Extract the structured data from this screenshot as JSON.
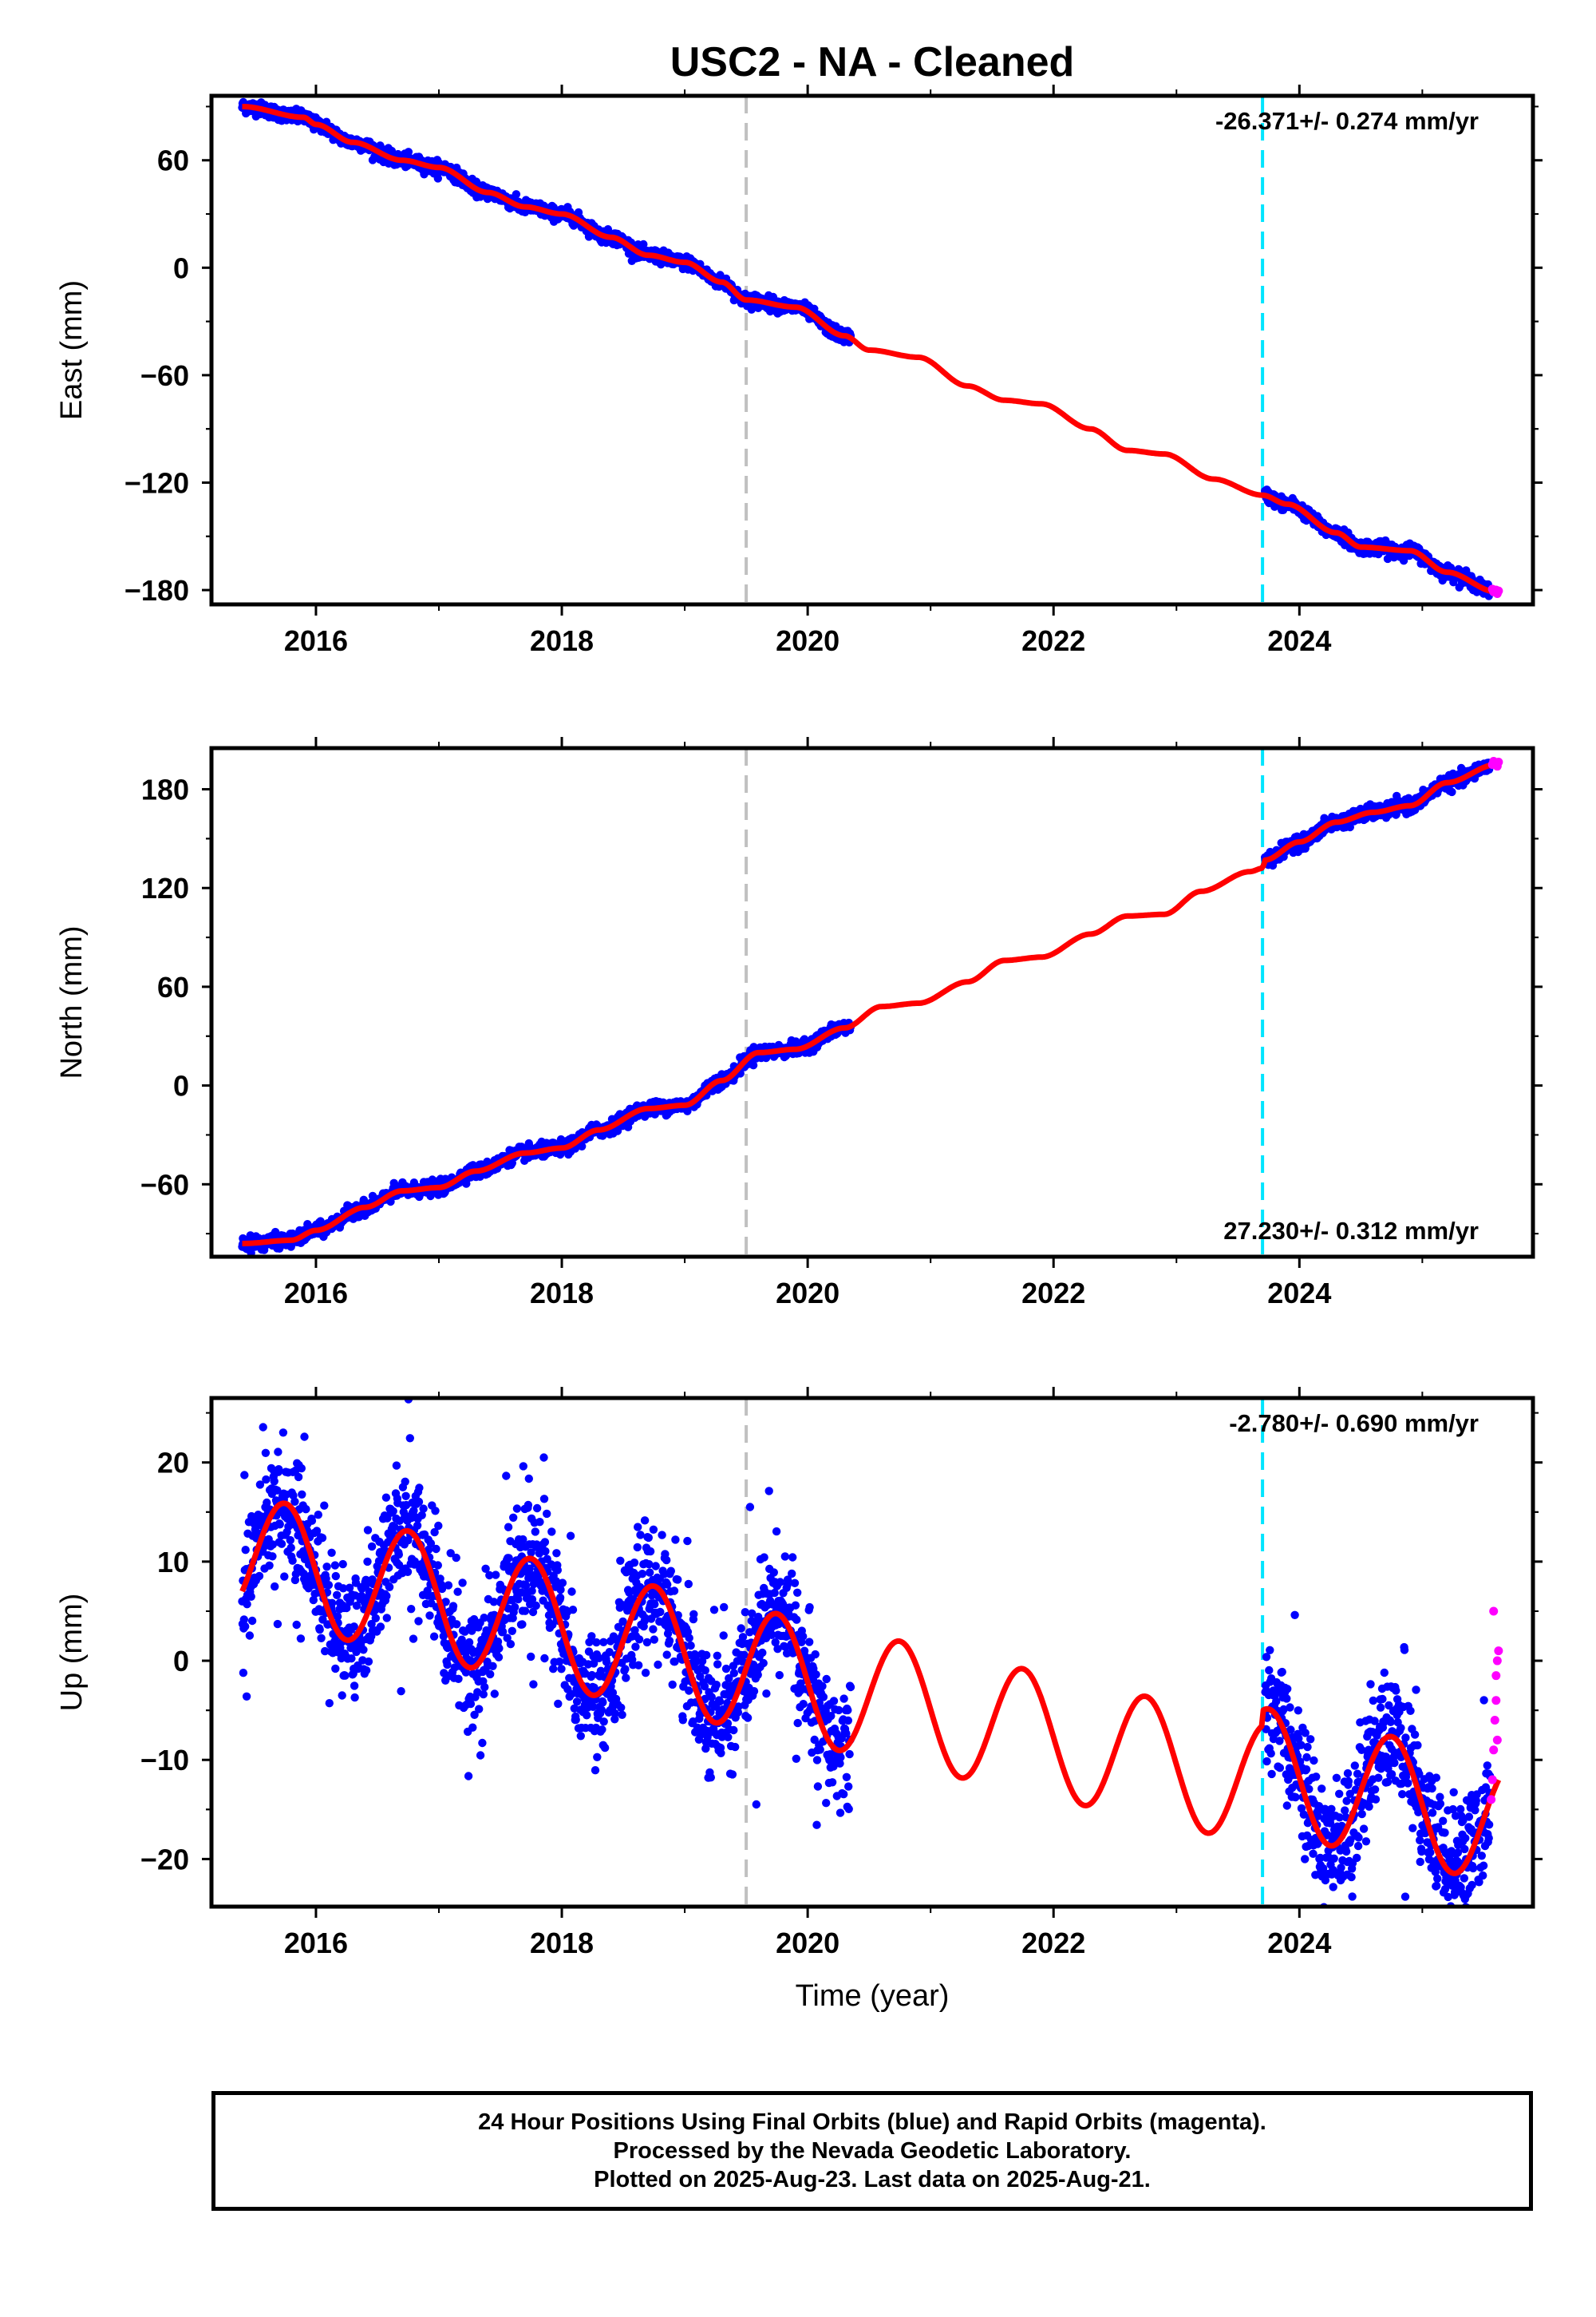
{
  "title": "USC2  - NA - Cleaned",
  "xlabel": "Time (year)",
  "colors": {
    "final": "#0000ff",
    "rapid": "#ff00ff",
    "model": "#ff0000",
    "event_gray": "#c0c0c0",
    "event_cyan": "#00e5ff"
  },
  "footer": {
    "line1": "24 Hour Positions Using Final Orbits (blue) and Rapid Orbits (magenta).",
    "line2": "Processed by the Nevada Geodetic Laboratory.",
    "line3": "Plotted on 2025-Aug-23. Last data on 2025-Aug-21."
  },
  "chart_data": [
    {
      "type": "scatter",
      "id": "east",
      "ylabel": "East (mm)",
      "rate_label": "-26.371+/- 0.274 mm/yr",
      "rate_position": "top-right",
      "xlim": [
        2015.15,
        2025.9
      ],
      "ylim": [
        -188,
        96
      ],
      "xticks": [
        2016,
        2018,
        2020,
        2022,
        2024
      ],
      "yticks": [
        -180,
        -120,
        -60,
        0,
        60
      ],
      "grid": false,
      "event_lines": [
        {
          "x": 2019.5,
          "color": "gray",
          "style": "dashed"
        },
        {
          "x": 2023.7,
          "color": "cyan",
          "style": "dashed"
        }
      ],
      "model_curve": [
        [
          2015.4,
          90
        ],
        [
          2015.9,
          84
        ],
        [
          2016.0,
          80
        ],
        [
          2016.3,
          70
        ],
        [
          2016.7,
          60
        ],
        [
          2017.0,
          56
        ],
        [
          2017.4,
          42
        ],
        [
          2017.7,
          34
        ],
        [
          2018.0,
          30
        ],
        [
          2018.4,
          17
        ],
        [
          2018.7,
          7
        ],
        [
          2019.0,
          3
        ],
        [
          2019.3,
          -8
        ],
        [
          2019.5,
          -18
        ],
        [
          2019.9,
          -22
        ],
        [
          2020.3,
          -38
        ],
        [
          2020.5,
          -46
        ],
        [
          2020.9,
          -50
        ],
        [
          2021.3,
          -66
        ],
        [
          2021.6,
          -74
        ],
        [
          2021.9,
          -76
        ],
        [
          2022.3,
          -90
        ],
        [
          2022.6,
          -102
        ],
        [
          2022.9,
          -104
        ],
        [
          2023.3,
          -118
        ],
        [
          2023.7,
          -127
        ],
        [
          2023.9,
          -132
        ],
        [
          2024.3,
          -148
        ],
        [
          2024.5,
          -156
        ],
        [
          2024.9,
          -158
        ],
        [
          2025.2,
          -170
        ],
        [
          2025.6,
          -181
        ]
      ],
      "final_segments": [
        {
          "start": 2015.4,
          "end": 2020.35
        },
        {
          "start": 2023.72,
          "end": 2025.55
        }
      ],
      "scatter_sd": 1.8,
      "rapid_points": [
        [
          2025.57,
          -179.5
        ],
        [
          2025.58,
          -181
        ],
        [
          2025.6,
          -180
        ],
        [
          2025.61,
          -182
        ],
        [
          2025.62,
          -180.5
        ]
      ]
    },
    {
      "type": "scatter",
      "id": "north",
      "ylabel": "North (mm)",
      "rate_label": "27.230+/- 0.312 mm/yr",
      "rate_position": "bottom-right",
      "xlim": [
        2015.15,
        2025.9
      ],
      "ylim": [
        -104,
        205
      ],
      "xticks": [
        2016,
        2018,
        2020,
        2022,
        2024
      ],
      "yticks": [
        -60,
        0,
        60,
        120,
        180
      ],
      "grid": false,
      "event_lines": [
        {
          "x": 2019.5,
          "color": "gray",
          "style": "dashed"
        },
        {
          "x": 2023.7,
          "color": "cyan",
          "style": "dashed"
        }
      ],
      "model_curve": [
        [
          2015.4,
          -96
        ],
        [
          2015.8,
          -94
        ],
        [
          2016.0,
          -88
        ],
        [
          2016.4,
          -74
        ],
        [
          2016.7,
          -64
        ],
        [
          2017.0,
          -62
        ],
        [
          2017.3,
          -52
        ],
        [
          2017.7,
          -41
        ],
        [
          2018.0,
          -38
        ],
        [
          2018.3,
          -27
        ],
        [
          2018.7,
          -14
        ],
        [
          2019.0,
          -12
        ],
        [
          2019.3,
          3
        ],
        [
          2019.6,
          20
        ],
        [
          2019.9,
          22
        ],
        [
          2020.3,
          35
        ],
        [
          2020.6,
          48
        ],
        [
          2020.9,
          50
        ],
        [
          2021.3,
          63
        ],
        [
          2021.6,
          76
        ],
        [
          2021.9,
          78
        ],
        [
          2022.3,
          92
        ],
        [
          2022.6,
          103
        ],
        [
          2022.9,
          104
        ],
        [
          2023.2,
          118
        ],
        [
          2023.6,
          130
        ],
        [
          2023.7,
          132
        ],
        [
          2023.72,
          137
        ],
        [
          2024.0,
          148
        ],
        [
          2024.3,
          160
        ],
        [
          2024.6,
          166
        ],
        [
          2024.9,
          170
        ],
        [
          2025.2,
          184
        ],
        [
          2025.6,
          195
        ]
      ],
      "final_segments": [
        {
          "start": 2015.4,
          "end": 2020.35
        },
        {
          "start": 2023.72,
          "end": 2025.55
        }
      ],
      "scatter_sd": 2.0,
      "rapid_points": [
        [
          2025.57,
          195
        ],
        [
          2025.58,
          197
        ],
        [
          2025.6,
          196
        ],
        [
          2025.61,
          194
        ],
        [
          2025.62,
          196.5
        ]
      ]
    },
    {
      "type": "scatter",
      "id": "up",
      "ylabel": "Up (mm)",
      "rate_label": "-2.780+/- 0.690 mm/yr",
      "rate_position": "top-right",
      "xlim": [
        2015.15,
        2025.9
      ],
      "ylim": [
        -24.8,
        26.5
      ],
      "xticks": [
        2016,
        2018,
        2020,
        2022,
        2024
      ],
      "yticks": [
        -20,
        -10,
        0,
        10,
        20
      ],
      "grid": false,
      "event_lines": [
        {
          "x": 2019.5,
          "color": "gray",
          "style": "dashed"
        },
        {
          "x": 2023.7,
          "color": "cyan",
          "style": "dashed"
        }
      ],
      "model": {
        "offset": 7.0,
        "t0": 2015.4,
        "rate": -2.78,
        "amplitude": 6.2,
        "peak_phase": 0.75,
        "step_at": 2023.7,
        "step": 1.5
      },
      "final_segments": [
        {
          "start": 2015.4,
          "end": 2020.35
        },
        {
          "start": 2023.72,
          "end": 2025.55
        }
      ],
      "scatter_sd": 3.0,
      "rapid_points": [
        [
          2025.56,
          -14
        ],
        [
          2025.57,
          -12
        ],
        [
          2025.58,
          -9
        ],
        [
          2025.59,
          -6
        ],
        [
          2025.6,
          -4
        ],
        [
          2025.6,
          -1.5
        ],
        [
          2025.61,
          0
        ],
        [
          2025.62,
          1
        ],
        [
          2025.58,
          5
        ],
        [
          2025.61,
          -8
        ]
      ]
    }
  ]
}
